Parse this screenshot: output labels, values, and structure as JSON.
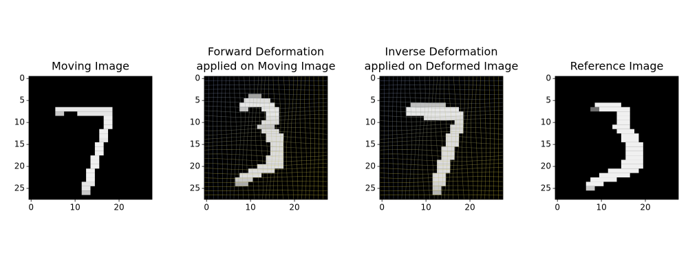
{
  "chart_data": [
    {
      "type": "image",
      "title": [
        "Moving Image"
      ],
      "xlim": [
        -0.5,
        27.5
      ],
      "ylim": [
        27.5,
        -0.5
      ],
      "xticks": [
        0,
        10,
        20
      ],
      "yticks": [
        0,
        5,
        10,
        15,
        20,
        25
      ],
      "deformation_grid": false,
      "runs": [
        [
          7,
          6,
          18,
          230
        ],
        [
          8,
          6,
          7,
          200
        ],
        [
          8,
          11,
          18,
          230
        ],
        [
          9,
          17,
          18,
          240
        ],
        [
          10,
          17,
          18,
          240
        ],
        [
          11,
          17,
          18,
          240
        ],
        [
          12,
          16,
          17,
          240
        ],
        [
          13,
          16,
          17,
          240
        ],
        [
          14,
          16,
          17,
          230
        ],
        [
          15,
          15,
          16,
          240
        ],
        [
          16,
          15,
          16,
          240
        ],
        [
          17,
          15,
          16,
          240
        ],
        [
          18,
          14,
          15,
          240
        ],
        [
          19,
          14,
          15,
          240
        ],
        [
          20,
          14,
          15,
          240
        ],
        [
          21,
          13,
          14,
          240
        ],
        [
          22,
          13,
          14,
          240
        ],
        [
          23,
          13,
          14,
          240
        ],
        [
          24,
          12,
          14,
          230
        ],
        [
          25,
          12,
          13,
          230
        ],
        [
          26,
          12,
          13,
          200
        ]
      ]
    },
    {
      "type": "image",
      "title": [
        "Forward Deformation",
        " applied on Moving Image"
      ],
      "xlim": [
        -0.5,
        27.5
      ],
      "ylim": [
        27.5,
        -0.5
      ],
      "xticks": [
        0,
        10,
        20
      ],
      "yticks": [
        0,
        5,
        10,
        15,
        20,
        25
      ],
      "deformation_grid": true,
      "runs": [
        [
          4,
          10,
          12,
          160
        ],
        [
          5,
          9,
          14,
          220
        ],
        [
          6,
          8,
          15,
          230
        ],
        [
          7,
          8,
          9,
          200
        ],
        [
          7,
          13,
          16,
          230
        ],
        [
          8,
          14,
          16,
          230
        ],
        [
          9,
          14,
          16,
          220
        ],
        [
          10,
          13,
          16,
          220
        ],
        [
          11,
          12,
          15,
          200
        ],
        [
          12,
          13,
          16,
          220
        ],
        [
          13,
          14,
          17,
          220
        ],
        [
          14,
          14,
          17,
          220
        ],
        [
          15,
          15,
          17,
          220
        ],
        [
          16,
          15,
          17,
          220
        ],
        [
          17,
          15,
          17,
          220
        ],
        [
          18,
          14,
          17,
          220
        ],
        [
          19,
          14,
          17,
          220
        ],
        [
          20,
          12,
          17,
          220
        ],
        [
          21,
          10,
          15,
          220
        ],
        [
          22,
          8,
          12,
          220
        ],
        [
          23,
          7,
          10,
          200
        ],
        [
          24,
          7,
          9,
          170
        ]
      ]
    },
    {
      "type": "image",
      "title": [
        "Inverse Deformation",
        " applied on Deformed Image"
      ],
      "xlim": [
        -0.5,
        27.5
      ],
      "ylim": [
        27.5,
        -0.5
      ],
      "xticks": [
        0,
        10,
        20
      ],
      "yticks": [
        0,
        5,
        10,
        15,
        20,
        25
      ],
      "deformation_grid": true,
      "runs": [
        [
          6,
          7,
          14,
          190
        ],
        [
          7,
          6,
          17,
          230
        ],
        [
          8,
          6,
          18,
          230
        ],
        [
          9,
          10,
          18,
          220
        ],
        [
          10,
          17,
          18,
          220
        ],
        [
          11,
          16,
          18,
          220
        ],
        [
          12,
          16,
          18,
          220
        ],
        [
          13,
          15,
          17,
          220
        ],
        [
          14,
          15,
          17,
          220
        ],
        [
          15,
          15,
          17,
          220
        ],
        [
          16,
          14,
          16,
          220
        ],
        [
          17,
          14,
          16,
          220
        ],
        [
          18,
          14,
          16,
          220
        ],
        [
          19,
          13,
          15,
          220
        ],
        [
          20,
          13,
          15,
          220
        ],
        [
          21,
          13,
          15,
          220
        ],
        [
          22,
          12,
          14,
          220
        ],
        [
          23,
          12,
          14,
          220
        ],
        [
          24,
          12,
          14,
          210
        ],
        [
          25,
          12,
          13,
          200
        ],
        [
          26,
          12,
          13,
          180
        ]
      ]
    },
    {
      "type": "image",
      "title": [
        "Reference Image"
      ],
      "xlim": [
        -0.5,
        27.5
      ],
      "ylim": [
        27.5,
        -0.5
      ],
      "xticks": [
        0,
        10,
        20
      ],
      "yticks": [
        0,
        5,
        10,
        15,
        20,
        25
      ],
      "deformation_grid": false,
      "runs": [
        [
          6,
          9,
          14,
          240
        ],
        [
          7,
          8,
          9,
          110
        ],
        [
          7,
          10,
          16,
          240
        ],
        [
          8,
          14,
          16,
          240
        ],
        [
          9,
          14,
          16,
          240
        ],
        [
          10,
          14,
          16,
          240
        ],
        [
          11,
          13,
          16,
          240
        ],
        [
          12,
          14,
          17,
          240
        ],
        [
          13,
          15,
          18,
          240
        ],
        [
          14,
          15,
          18,
          240
        ],
        [
          15,
          16,
          19,
          240
        ],
        [
          16,
          16,
          19,
          240
        ],
        [
          17,
          16,
          19,
          240
        ],
        [
          18,
          16,
          19,
          240
        ],
        [
          19,
          15,
          19,
          240
        ],
        [
          20,
          15,
          19,
          240
        ],
        [
          21,
          12,
          18,
          240
        ],
        [
          22,
          10,
          16,
          240
        ],
        [
          23,
          8,
          13,
          240
        ],
        [
          24,
          7,
          10,
          240
        ],
        [
          25,
          7,
          8,
          200
        ]
      ]
    }
  ]
}
